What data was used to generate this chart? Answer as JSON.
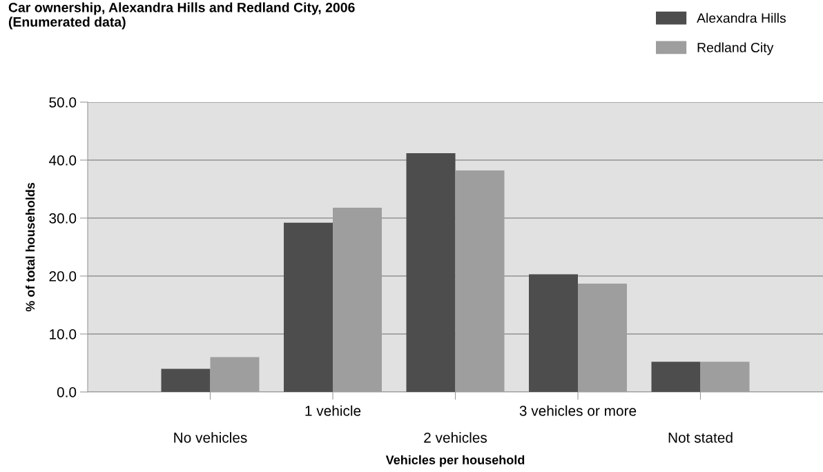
{
  "chart_data": {
    "type": "bar",
    "title": "Car ownership, Alexandra Hills and Redland City, 2006\n(Enumerated data)",
    "xlabel": "Vehicles per household",
    "ylabel": "% of total households",
    "categories": [
      "No vehicles",
      "1 vehicle",
      "2 vehicles",
      "3 vehicles or more",
      "Not stated"
    ],
    "series": [
      {
        "name": "Alexandra Hills",
        "color": "#4d4d4d",
        "values": [
          4.0,
          29.2,
          41.2,
          20.3,
          5.2
        ]
      },
      {
        "name": "Redland City",
        "color": "#9e9e9e",
        "values": [
          6.0,
          31.8,
          38.2,
          18.7,
          5.2
        ]
      }
    ],
    "ylim": [
      0,
      50
    ],
    "yticks": [
      {
        "value": 0,
        "label": "0.0"
      },
      {
        "value": 10,
        "label": "10.0"
      },
      {
        "value": 20,
        "label": "20.0"
      },
      {
        "value": 30,
        "label": "30.0"
      },
      {
        "value": 40,
        "label": "40.0"
      },
      {
        "value": 50,
        "label": "50.0"
      }
    ],
    "grid": "y",
    "legend": "top right"
  }
}
